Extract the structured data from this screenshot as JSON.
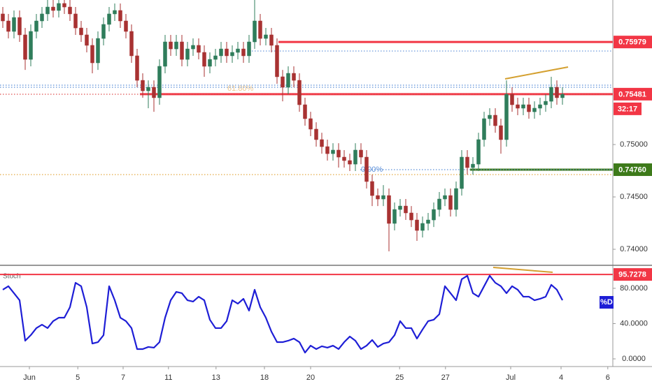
{
  "chart_data": [
    {
      "type": "candlestick",
      "open": [
        0.76247,
        0.7618,
        0.7608,
        0.76213,
        0.76047,
        0.75813,
        0.7608,
        0.7618,
        0.76247,
        0.76313,
        0.7628,
        0.76347,
        0.76313,
        0.76247,
        0.76113,
        0.76047,
        0.75947,
        0.7578,
        0.76013,
        0.76147,
        0.76247,
        0.7628,
        0.7618,
        0.7608,
        0.75847,
        0.75613,
        0.75513,
        0.75547,
        0.75447,
        0.75747,
        0.7598,
        0.75913,
        0.7598,
        0.75813,
        0.75913,
        0.75947,
        0.7588,
        0.75747,
        0.75813,
        0.75847,
        0.75913,
        0.75847,
        0.7588,
        0.75913,
        0.75847,
        0.7598,
        0.7618,
        0.76013,
        0.76047,
        0.75947,
        0.75647,
        0.75547,
        0.7568,
        0.75613,
        0.7538,
        0.75247,
        0.75147,
        0.75047,
        0.7498,
        0.74913,
        0.74947,
        0.7488,
        0.74847,
        0.74813,
        0.74947,
        0.7488,
        0.74647,
        0.74513,
        0.7448,
        0.74513,
        0.74247,
        0.7438,
        0.74413,
        0.74347,
        0.7428,
        0.7418,
        0.74247,
        0.7428,
        0.7438,
        0.7448,
        0.74513,
        0.7438,
        0.7458,
        0.7488,
        0.7478,
        0.74813,
        0.75047,
        0.75247,
        0.7528,
        0.7518,
        0.75047,
        0.7548,
        0.7538,
        0.75347,
        0.7538,
        0.75313,
        0.75347,
        0.7538,
        0.75413,
        0.75547,
        0.75447
      ],
      "high": [
        0.76313,
        0.76247,
        0.7628,
        0.7628,
        0.76113,
        0.76147,
        0.76247,
        0.76313,
        0.7638,
        0.7638,
        0.7638,
        0.7638,
        0.7638,
        0.76313,
        0.7618,
        0.76113,
        0.76013,
        0.7608,
        0.76213,
        0.76313,
        0.76347,
        0.76347,
        0.76247,
        0.76147,
        0.75913,
        0.7568,
        0.75613,
        0.75613,
        0.75813,
        0.76047,
        0.76047,
        0.76047,
        0.76047,
        0.7598,
        0.76013,
        0.76013,
        0.75947,
        0.7588,
        0.75913,
        0.7598,
        0.7598,
        0.75947,
        0.7598,
        0.7598,
        0.76047,
        0.7638,
        0.76247,
        0.76113,
        0.76113,
        0.76013,
        0.75713,
        0.75747,
        0.75747,
        0.7568,
        0.75447,
        0.75313,
        0.75213,
        0.75113,
        0.75047,
        0.75013,
        0.75013,
        0.74947,
        0.74913,
        0.75013,
        0.75013,
        0.74947,
        0.74713,
        0.7458,
        0.74613,
        0.7458,
        0.74447,
        0.7448,
        0.7448,
        0.74413,
        0.74347,
        0.74313,
        0.74347,
        0.74447,
        0.74547,
        0.7458,
        0.7458,
        0.74647,
        0.74947,
        0.74947,
        0.7488,
        0.75113,
        0.75313,
        0.75347,
        0.75347,
        0.75247,
        0.75613,
        0.75547,
        0.75447,
        0.75447,
        0.75447,
        0.75413,
        0.75447,
        0.7548,
        0.75647,
        0.75613,
        0.75547
      ],
      "low": [
        0.76113,
        0.76013,
        0.76013,
        0.7598,
        0.75713,
        0.75747,
        0.76013,
        0.76113,
        0.7618,
        0.76213,
        0.76213,
        0.76247,
        0.7618,
        0.76047,
        0.7598,
        0.7588,
        0.7568,
        0.75713,
        0.75947,
        0.7608,
        0.7618,
        0.76113,
        0.76013,
        0.7578,
        0.75547,
        0.75447,
        0.75347,
        0.75313,
        0.7538,
        0.7568,
        0.75847,
        0.75847,
        0.75747,
        0.75747,
        0.75847,
        0.75813,
        0.75647,
        0.7568,
        0.75747,
        0.7578,
        0.7578,
        0.7578,
        0.75813,
        0.7578,
        0.7578,
        0.75913,
        0.75947,
        0.75947,
        0.7588,
        0.7558,
        0.75413,
        0.7548,
        0.75547,
        0.75313,
        0.7518,
        0.7508,
        0.7498,
        0.74913,
        0.74847,
        0.74847,
        0.7478,
        0.7478,
        0.74747,
        0.74747,
        0.74813,
        0.7458,
        0.74413,
        0.74413,
        0.74413,
        0.7398,
        0.7418,
        0.74313,
        0.7428,
        0.74213,
        0.7408,
        0.74113,
        0.7418,
        0.74213,
        0.74313,
        0.74413,
        0.74313,
        0.74313,
        0.74513,
        0.74713,
        0.74713,
        0.74747,
        0.7498,
        0.7518,
        0.75113,
        0.74913,
        0.7498,
        0.75313,
        0.7528,
        0.7528,
        0.75247,
        0.75247,
        0.7528,
        0.75313,
        0.75347,
        0.7538,
        0.7538
      ],
      "close": [
        0.7618,
        0.7608,
        0.76213,
        0.76047,
        0.75813,
        0.7608,
        0.7618,
        0.76247,
        0.76313,
        0.7628,
        0.76347,
        0.76313,
        0.76247,
        0.76113,
        0.76047,
        0.75947,
        0.7578,
        0.76013,
        0.76147,
        0.76247,
        0.7628,
        0.7618,
        0.7608,
        0.75847,
        0.75613,
        0.75513,
        0.75547,
        0.75447,
        0.75747,
        0.7598,
        0.75913,
        0.7598,
        0.75813,
        0.75913,
        0.75947,
        0.7588,
        0.75747,
        0.75813,
        0.75847,
        0.75913,
        0.75847,
        0.7588,
        0.75913,
        0.75847,
        0.7598,
        0.7618,
        0.76013,
        0.76047,
        0.75947,
        0.75647,
        0.75547,
        0.7568,
        0.75613,
        0.7538,
        0.75247,
        0.75147,
        0.75047,
        0.7498,
        0.74913,
        0.74947,
        0.7488,
        0.74847,
        0.74813,
        0.74947,
        0.7488,
        0.74647,
        0.74513,
        0.7448,
        0.74513,
        0.74247,
        0.7438,
        0.74413,
        0.74347,
        0.7428,
        0.7418,
        0.74247,
        0.7428,
        0.7438,
        0.7448,
        0.74513,
        0.7438,
        0.7458,
        0.7488,
        0.7478,
        0.74813,
        0.75047,
        0.75247,
        0.7528,
        0.7518,
        0.75047,
        0.7548,
        0.7538,
        0.75347,
        0.7538,
        0.75313,
        0.75347,
        0.7538,
        0.75413,
        0.75547,
        0.75447,
        0.7548
      ],
      "up_color": "#2f7d5b",
      "down_color": "#a83232",
      "xlim": [
        -0.5,
        109
      ],
      "ylim": [
        0.73847,
        0.7638
      ],
      "yticks": [
        {
          "value": 0.74,
          "label": "0.74000"
        },
        {
          "value": 0.745,
          "label": "0.74500"
        },
        {
          "value": 0.75,
          "label": "0.75000"
        }
      ],
      "levels": [
        {
          "value": 0.75979,
          "color": "#f23645",
          "style": "solid",
          "tag": true
        },
        {
          "value": 0.75481,
          "color": "#f23645",
          "style": "solid",
          "tag": true
        },
        {
          "value": 0.7476,
          "label": "0.74760",
          "color": "#3d7a1a",
          "style": "solid",
          "tag": true
        },
        {
          "value": 0.75893,
          "color": "#5b8fd8",
          "style": "dotted",
          "tag": false
        },
        {
          "value": 0.75567,
          "color": "#5b8fd8",
          "style": "dotted",
          "tag": false
        },
        {
          "value": 0.75547,
          "color": "#5b8fd8",
          "style": "dotted",
          "tag": false
        },
        {
          "value": 0.74713,
          "color": "#e0a030",
          "style": "dotted",
          "tag": false
        },
        {
          "value": 0.7548,
          "color": "#e05050",
          "style": "dotted",
          "tag": false
        },
        {
          "value": 0.7476,
          "color": "#5b8fd8",
          "style": "dotted",
          "tag": false
        }
      ],
      "countdown": "32:17",
      "annotations": [
        "61.80%",
        "0.00%"
      ],
      "grid": false
    },
    {
      "type": "line",
      "title": "Stoch",
      "series": [
        {
          "name": "%D",
          "color": "#1e1ed6",
          "values": [
            78.4,
            82.4,
            74.5,
            66.5,
            20.6,
            26.9,
            34.9,
            38.8,
            34.9,
            42.8,
            46.7,
            46.7,
            58.6,
            86.3,
            82.4,
            58.6,
            17.4,
            19.0,
            26.9,
            82.4,
            66.5,
            46.7,
            42.8,
            34.9,
            11.1,
            11.1,
            13.5,
            12.7,
            19.0,
            46.7,
            66.5,
            76.0,
            74.5,
            66.5,
            65.0,
            70.5,
            66.5,
            44.4,
            34.9,
            34.9,
            42.8,
            66.5,
            62.6,
            68.1,
            54.7,
            78.4,
            58.6,
            46.7,
            30.9,
            19.0,
            19.0,
            20.6,
            23.0,
            19.0,
            7.1,
            15.0,
            11.1,
            14.3,
            12.7,
            15.0,
            11.1,
            19.0,
            25.3,
            20.6,
            11.1,
            15.0,
            21.4,
            13.5,
            17.4,
            19.0,
            26.9,
            42.8,
            34.9,
            34.9,
            23.0,
            33.3,
            42.8,
            44.4,
            50.7,
            82.4,
            74.5,
            66.5,
            90.3,
            94.3,
            74.5,
            70.5,
            82.4,
            94.3,
            86.3,
            82.4,
            74.5,
            82.4,
            78.4,
            70.5,
            70.5,
            66.5,
            68.1,
            70.5,
            84.0,
            78.4,
            66.5
          ]
        }
      ],
      "xlim": [
        -0.5,
        109
      ],
      "xticks": [
        {
          "value": 4.75,
          "label": "Jun"
        },
        {
          "value": 13.4,
          "label": "5"
        },
        {
          "value": 21.5,
          "label": "7"
        },
        {
          "value": 29.6,
          "label": "11"
        },
        {
          "value": 38.1,
          "label": "13"
        },
        {
          "value": 46.75,
          "label": "18"
        },
        {
          "value": 55,
          "label": "20"
        },
        {
          "value": 70.9,
          "label": "25"
        },
        {
          "value": 79.1,
          "label": "27"
        },
        {
          "value": 90.75,
          "label": "Jul"
        },
        {
          "value": 99.75,
          "label": "4"
        },
        {
          "value": 108.1,
          "label": "6"
        }
      ],
      "ylim": [
        -8.7,
        105.3
      ],
      "yticks": [
        {
          "value": 0,
          "label": "0.0000"
        },
        {
          "value": 40,
          "label": "40.0000"
        },
        {
          "value": 80,
          "label": "80.0000"
        }
      ],
      "levels": [
        {
          "value": 95.7278,
          "color": "#f23645",
          "style": "solid",
          "tag": true
        }
      ],
      "grid": false
    }
  ]
}
